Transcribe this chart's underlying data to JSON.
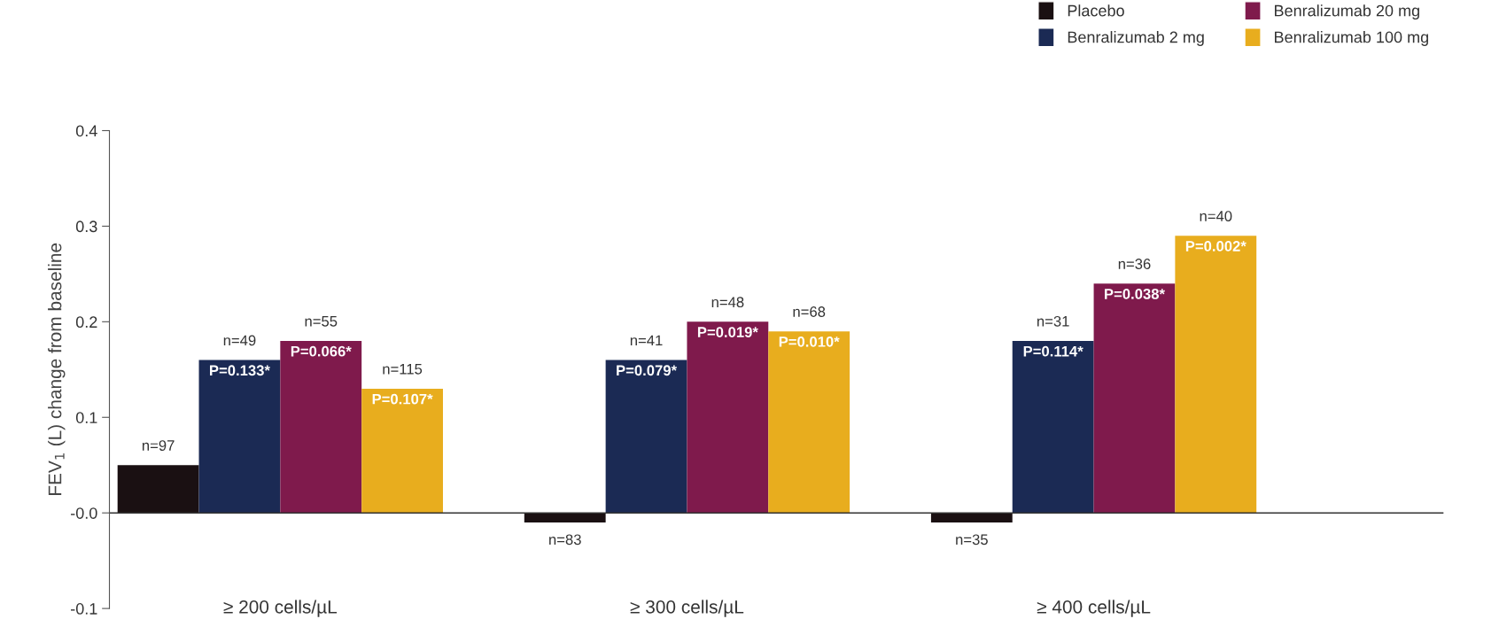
{
  "chart_data": {
    "type": "bar",
    "ylabel": "FEV$_{1}$ (L) change from baseline",
    "categories": [
      "≥ 200 cells/µL",
      "≥ 300 cells/µL",
      "≥ 400 cells/µL"
    ],
    "series": [
      {
        "name": "Placebo",
        "color": "#1a1012",
        "values": [
          0.05,
          -0.01,
          -0.01
        ]
      },
      {
        "name": "Benralizumab 2 mg",
        "color": "#1b2a54",
        "values": [
          0.16,
          0.16,
          0.18
        ]
      },
      {
        "name": "Benralizumab 20 mg",
        "color": "#7f1a4c",
        "values": [
          0.18,
          0.2,
          0.24
        ]
      },
      {
        "name": "Benralizumab 100 mg",
        "color": "#e8ad1e",
        "values": [
          0.13,
          0.19,
          0.29
        ]
      }
    ],
    "annotations": [
      "n=97",
      "n=83",
      "n=35",
      "n=49",
      "n=41",
      "n=31",
      "n=55",
      "n=48",
      "n=36",
      "n=115",
      "n=68",
      "n=40",
      "P=0.133*",
      "P=0.079*",
      "P=0.114*",
      "P=0.066*",
      "P=0.019*",
      "P=0.038*",
      "P=0.107*",
      "P=0.010*",
      "P=0.002*"
    ],
    "ref_lines": [
      {
        "axis": "y",
        "value": 0,
        "color": "#333333"
      }
    ],
    "ylim": [
      -0.1,
      0.4
    ],
    "yticks": [
      {
        "value": -0.1,
        "label": "-0.1"
      },
      {
        "value": 0,
        "label": "-0.0"
      },
      0.1,
      0.2,
      0.3,
      0.4
    ],
    "legend": "top right",
    "grid": false
  }
}
